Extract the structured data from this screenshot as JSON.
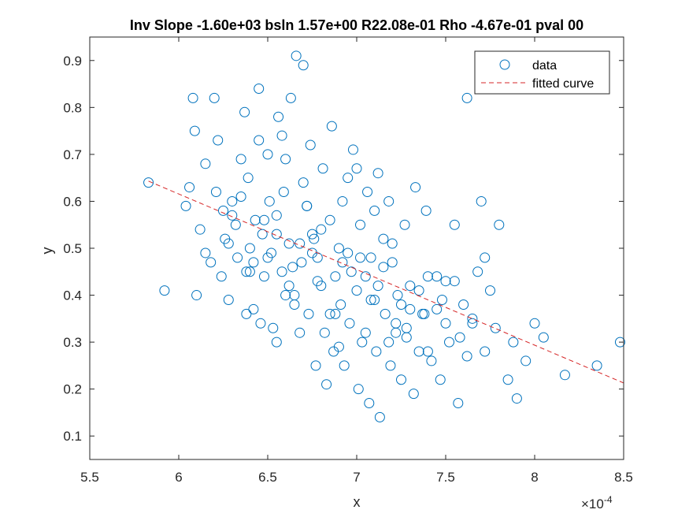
{
  "chart_data": {
    "type": "scatter",
    "title": "Inv Slope -1.60e+03 bsln 1.57e+00 R22.08e-01 Rho -4.67e-01 pval 00",
    "xlabel": "x",
    "ylabel": "y",
    "x_exponent_label": "×10",
    "x_exponent_power": "-4",
    "xlim": [
      5.5,
      8.5
    ],
    "ylim": [
      0.05,
      0.95
    ],
    "x_ticks": [
      5.5,
      6,
      6.5,
      7,
      7.5,
      8,
      8.5
    ],
    "x_tick_labels": [
      "5.5",
      "6",
      "6.5",
      "7",
      "7.5",
      "8",
      "8.5"
    ],
    "y_ticks": [
      0.1,
      0.2,
      0.3,
      0.4,
      0.5,
      0.6,
      0.7,
      0.8,
      0.9
    ],
    "y_tick_labels": [
      "0.1",
      "0.2",
      "0.3",
      "0.4",
      "0.5",
      "0.6",
      "0.7",
      "0.8",
      "0.9"
    ],
    "grid": false,
    "legend_position": "top-right",
    "colors": {
      "data": "#0072bd",
      "fit": "#d62728",
      "axes": "#262626"
    },
    "series": [
      {
        "name": "data",
        "marker": "circle",
        "x": [
          5.83,
          5.92,
          6.04,
          6.06,
          6.08,
          6.09,
          6.1,
          6.12,
          6.15,
          6.18,
          6.2,
          6.21,
          6.22,
          6.24,
          6.26,
          6.28,
          6.3,
          6.32,
          6.33,
          6.35,
          6.37,
          6.38,
          6.39,
          6.4,
          6.42,
          6.43,
          6.45,
          6.46,
          6.47,
          6.48,
          6.5,
          6.51,
          6.52,
          6.53,
          6.55,
          6.56,
          6.58,
          6.59,
          6.6,
          6.62,
          6.63,
          6.64,
          6.65,
          6.66,
          6.68,
          6.69,
          6.7,
          6.72,
          6.73,
          6.74,
          6.75,
          6.77,
          6.78,
          6.8,
          6.81,
          6.82,
          6.83,
          6.85,
          6.86,
          6.87,
          6.88,
          6.9,
          6.91,
          6.92,
          6.93,
          6.95,
          6.96,
          6.97,
          6.98,
          7.0,
          7.01,
          7.02,
          7.03,
          7.05,
          7.06,
          7.07,
          7.08,
          7.1,
          7.11,
          7.12,
          7.13,
          7.15,
          7.16,
          7.18,
          7.19,
          7.2,
          7.22,
          7.23,
          7.25,
          7.27,
          7.28,
          7.3,
          7.32,
          7.33,
          7.35,
          7.37,
          7.39,
          7.4,
          7.42,
          7.45,
          7.47,
          7.5,
          7.52,
          7.55,
          7.57,
          7.6,
          7.62,
          7.65,
          7.68,
          7.7,
          7.72,
          7.75,
          7.78,
          7.8,
          7.85,
          7.88,
          7.9,
          7.95,
          8.0,
          8.05,
          8.17,
          8.35,
          8.48,
          6.45,
          6.55,
          6.6,
          6.7,
          6.75,
          6.9,
          7.0,
          7.1,
          7.2,
          7.3,
          7.45,
          6.35,
          6.5,
          6.65,
          6.8,
          7.05,
          7.15,
          7.25,
          7.4,
          7.55,
          6.25,
          6.4,
          6.55,
          6.72,
          6.85,
          6.95,
          7.12,
          7.28,
          7.48,
          7.62,
          6.15,
          6.3,
          6.42,
          6.58,
          6.68,
          6.78,
          6.88,
          7.02,
          7.18,
          7.35,
          7.5,
          7.65,
          6.28,
          6.38,
          6.48,
          6.62,
          6.76,
          6.92,
          7.08,
          7.22,
          7.38,
          7.58,
          7.72
        ],
        "y": [
          0.64,
          0.41,
          0.59,
          0.63,
          0.82,
          0.75,
          0.4,
          0.54,
          0.49,
          0.47,
          0.82,
          0.62,
          0.73,
          0.44,
          0.52,
          0.39,
          0.6,
          0.55,
          0.48,
          0.69,
          0.79,
          0.36,
          0.65,
          0.5,
          0.37,
          0.56,
          0.84,
          0.34,
          0.53,
          0.44,
          0.7,
          0.6,
          0.49,
          0.33,
          0.3,
          0.78,
          0.45,
          0.62,
          0.4,
          0.51,
          0.82,
          0.46,
          0.38,
          0.91,
          0.32,
          0.47,
          0.89,
          0.59,
          0.36,
          0.72,
          0.53,
          0.25,
          0.48,
          0.42,
          0.67,
          0.32,
          0.21,
          0.56,
          0.76,
          0.28,
          0.44,
          0.5,
          0.38,
          0.6,
          0.25,
          0.65,
          0.34,
          0.45,
          0.71,
          0.41,
          0.2,
          0.55,
          0.3,
          0.44,
          0.62,
          0.17,
          0.48,
          0.39,
          0.28,
          0.66,
          0.14,
          0.52,
          0.36,
          0.6,
          0.25,
          0.47,
          0.34,
          0.4,
          0.22,
          0.55,
          0.31,
          0.42,
          0.19,
          0.63,
          0.28,
          0.36,
          0.58,
          0.44,
          0.26,
          0.37,
          0.22,
          0.43,
          0.3,
          0.55,
          0.17,
          0.38,
          0.82,
          0.34,
          0.45,
          0.6,
          0.28,
          0.41,
          0.33,
          0.55,
          0.22,
          0.3,
          0.18,
          0.26,
          0.34,
          0.31,
          0.23,
          0.25,
          0.3,
          0.73,
          0.57,
          0.69,
          0.64,
          0.49,
          0.29,
          0.67,
          0.58,
          0.51,
          0.37,
          0.44,
          0.61,
          0.48,
          0.4,
          0.54,
          0.32,
          0.46,
          0.38,
          0.28,
          0.43,
          0.58,
          0.45,
          0.53,
          0.59,
          0.36,
          0.49,
          0.42,
          0.33,
          0.39,
          0.27,
          0.68,
          0.57,
          0.47,
          0.74,
          0.51,
          0.43,
          0.36,
          0.48,
          0.3,
          0.41,
          0.34,
          0.35,
          0.51,
          0.45,
          0.56,
          0.42,
          0.52,
          0.47,
          0.39,
          0.32,
          0.36,
          0.31,
          0.48
        ]
      },
      {
        "name": "fitted curve",
        "line_style": "dashed",
        "x": [
          5.83,
          8.5
        ],
        "y": [
          0.643,
          0.213
        ]
      }
    ]
  }
}
